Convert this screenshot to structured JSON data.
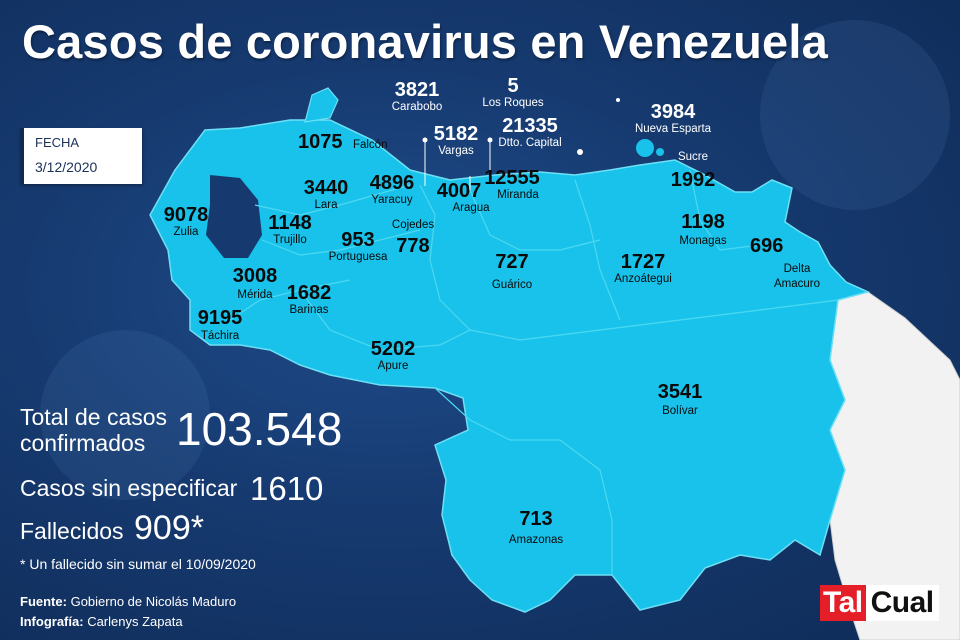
{
  "title": "Casos de coronavirus en Venezuela",
  "date": {
    "label": "FECHA",
    "value": "3/12/2020"
  },
  "colors": {
    "map_fill": "#19c2ea",
    "neighbor_fill": "#f2f2f2",
    "background": "#163a70",
    "logo_red": "#e51f27"
  },
  "states": [
    {
      "name": "Falcón",
      "cases": "1075"
    },
    {
      "name": "Carabobo",
      "cases": "3821"
    },
    {
      "name": "Los Roques",
      "cases": "5"
    },
    {
      "name": "Vargas",
      "cases": "5182"
    },
    {
      "name": "Dtto. Capital",
      "cases": "21335"
    },
    {
      "name": "Nueva Esparta",
      "cases": "3984"
    },
    {
      "name": "Sucre",
      "cases": "1992"
    },
    {
      "name": "Zulia",
      "cases": "9078"
    },
    {
      "name": "Lara",
      "cases": "3440"
    },
    {
      "name": "Yaracuy",
      "cases": "4896"
    },
    {
      "name": "Aragua",
      "cases": "4007"
    },
    {
      "name": "Miranda",
      "cases": "12555"
    },
    {
      "name": "Trujillo",
      "cases": "1148"
    },
    {
      "name": "Portuguesa",
      "cases": "953"
    },
    {
      "name": "Cojedes",
      "cases": "778"
    },
    {
      "name": "Guárico",
      "cases": "727"
    },
    {
      "name": "Anzoátegui",
      "cases": "1727"
    },
    {
      "name": "Monagas",
      "cases": "1198"
    },
    {
      "name": "Delta Amacuro",
      "cases": "696"
    },
    {
      "name": "Mérida",
      "cases": "3008"
    },
    {
      "name": "Barinas",
      "cases": "1682"
    },
    {
      "name": "Táchira",
      "cases": "9195"
    },
    {
      "name": "Apure",
      "cases": "5202"
    },
    {
      "name": "Bolívar",
      "cases": "3541"
    },
    {
      "name": "Amazonas",
      "cases": "713"
    }
  ],
  "stats": {
    "total_label_1": "Total de casos",
    "total_label_2": "confirmados",
    "total_value": "103.548",
    "unspecified_label": "Casos sin especificar",
    "unspecified_value": "1610",
    "deaths_label": "Fallecidos",
    "deaths_value": "909*",
    "note": "* Un fallecido sin sumar el 10/09/2020"
  },
  "credits": {
    "source_label": "Fuente:",
    "source_value": "Gobierno de Nicolás Maduro",
    "graphics_label": "Infografía:",
    "graphics_value": "Carlenys Zapata"
  },
  "logo": {
    "part1": "Tal",
    "part2": "Cual"
  }
}
